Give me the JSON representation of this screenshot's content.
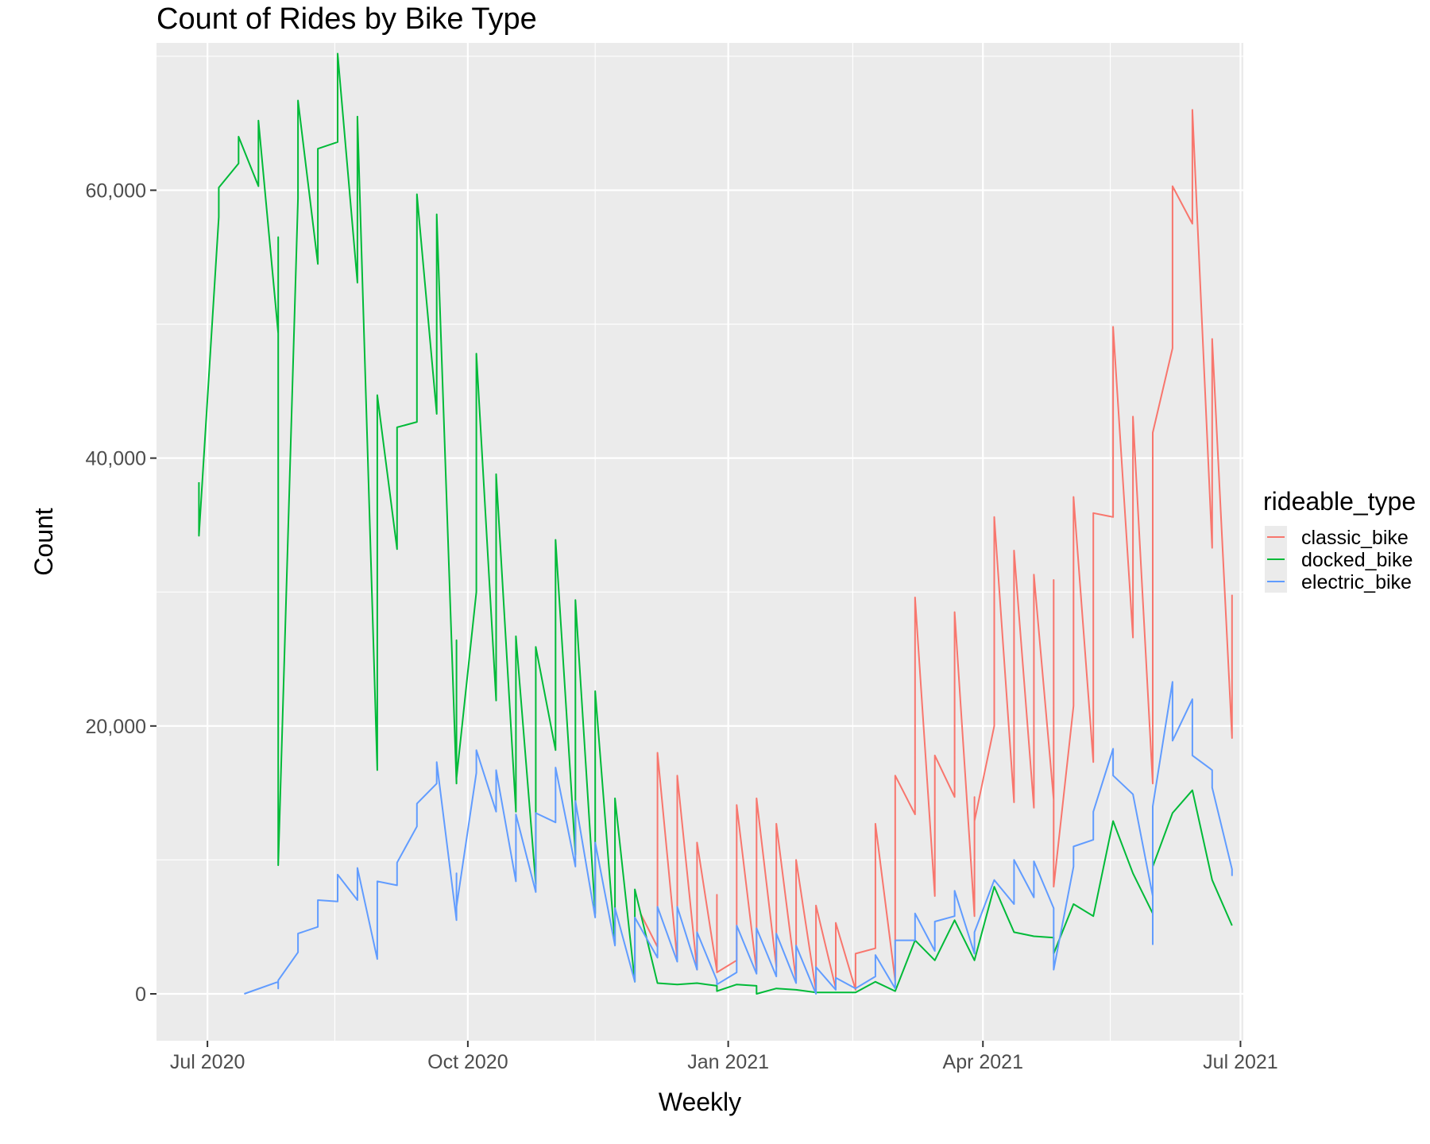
{
  "chart_data": {
    "type": "line",
    "title": "Count of Rides by Bike Type",
    "xlabel": "Weekly",
    "ylabel": "Count",
    "legend_title": "rideable_type",
    "legend_position": "right",
    "grid": true,
    "xlim": [
      "2020-06-13",
      "2021-07-02"
    ],
    "ylim": [
      -3500,
      71000
    ],
    "x_ticks": [
      {
        "date": "2020-07-01",
        "label": "Jul 2020"
      },
      {
        "date": "2020-10-01",
        "label": "Oct 2020"
      },
      {
        "date": "2021-01-01",
        "label": "Jan 2021"
      },
      {
        "date": "2021-04-01",
        "label": "Apr 2021"
      },
      {
        "date": "2021-07-01",
        "label": "Jul 2021"
      }
    ],
    "x_minor_breaks": [
      "2020-08-15",
      "2020-11-15",
      "2021-02-14",
      "2021-05-16"
    ],
    "y_ticks": [
      {
        "value": 0,
        "label": "0"
      },
      {
        "value": 20000,
        "label": "20,000"
      },
      {
        "value": 40000,
        "label": "40,000"
      },
      {
        "value": 60000,
        "label": "60,000"
      }
    ],
    "y_minor_breaks": [
      10000,
      30000,
      50000,
      70000
    ],
    "series": [
      {
        "name": "classic_bike",
        "color": "#F8766D",
        "points": [
          [
            "2020-12-01",
            6000
          ],
          [
            "2020-12-07",
            3500
          ],
          [
            "2020-12-07",
            18000
          ],
          [
            "2020-12-14",
            2500
          ],
          [
            "2020-12-14",
            16300
          ],
          [
            "2020-12-21",
            1800
          ],
          [
            "2020-12-21",
            11300
          ],
          [
            "2020-12-28",
            1700
          ],
          [
            "2020-12-28",
            7400
          ],
          [
            "2020-12-28",
            1600
          ],
          [
            "2021-01-04",
            2500
          ],
          [
            "2021-01-04",
            14100
          ],
          [
            "2021-01-11",
            1700
          ],
          [
            "2021-01-11",
            14600
          ],
          [
            "2021-01-18",
            2000
          ],
          [
            "2021-01-18",
            12700
          ],
          [
            "2021-01-25",
            1000
          ],
          [
            "2021-01-25",
            10000
          ],
          [
            "2021-02-01",
            200
          ],
          [
            "2021-02-01",
            6600
          ],
          [
            "2021-02-08",
            400
          ],
          [
            "2021-02-08",
            5300
          ],
          [
            "2021-02-15",
            300
          ],
          [
            "2021-02-15",
            3000
          ],
          [
            "2021-02-22",
            3400
          ],
          [
            "2021-02-22",
            12700
          ],
          [
            "2021-03-01",
            1000
          ],
          [
            "2021-03-01",
            16300
          ],
          [
            "2021-03-08",
            13400
          ],
          [
            "2021-03-08",
            29600
          ],
          [
            "2021-03-15",
            7300
          ],
          [
            "2021-03-15",
            17800
          ],
          [
            "2021-03-22",
            14700
          ],
          [
            "2021-03-22",
            28500
          ],
          [
            "2021-03-29",
            5800
          ],
          [
            "2021-03-29",
            14700
          ],
          [
            "2021-03-29",
            12900
          ],
          [
            "2021-04-05",
            20000
          ],
          [
            "2021-04-05",
            35600
          ],
          [
            "2021-04-12",
            14300
          ],
          [
            "2021-04-12",
            33100
          ],
          [
            "2021-04-19",
            13900
          ],
          [
            "2021-04-19",
            31300
          ],
          [
            "2021-04-26",
            14500
          ],
          [
            "2021-04-26",
            30900
          ],
          [
            "2021-04-26",
            8000
          ],
          [
            "2021-05-03",
            21500
          ],
          [
            "2021-05-03",
            37100
          ],
          [
            "2021-05-10",
            17300
          ],
          [
            "2021-05-10",
            35900
          ],
          [
            "2021-05-17",
            35600
          ],
          [
            "2021-05-17",
            49800
          ],
          [
            "2021-05-24",
            26600
          ],
          [
            "2021-05-24",
            43100
          ],
          [
            "2021-05-31",
            15700
          ],
          [
            "2021-05-31",
            41900
          ],
          [
            "2021-06-07",
            48200
          ],
          [
            "2021-06-07",
            60300
          ],
          [
            "2021-06-14",
            57500
          ],
          [
            "2021-06-14",
            66000
          ],
          [
            "2021-06-21",
            33300
          ],
          [
            "2021-06-21",
            48900
          ],
          [
            "2021-06-28",
            19100
          ],
          [
            "2021-06-28",
            29800
          ]
        ]
      },
      {
        "name": "docked_bike",
        "color": "#00BA38",
        "points": [
          [
            "2020-06-28",
            38200
          ],
          [
            "2020-06-28",
            34200
          ],
          [
            "2020-07-05",
            58000
          ],
          [
            "2020-07-05",
            60200
          ],
          [
            "2020-07-12",
            62000
          ],
          [
            "2020-07-12",
            64000
          ],
          [
            "2020-07-19",
            60300
          ],
          [
            "2020-07-19",
            65200
          ],
          [
            "2020-07-26",
            49300
          ],
          [
            "2020-07-26",
            56500
          ],
          [
            "2020-07-26",
            9600
          ],
          [
            "2020-08-02",
            59400
          ],
          [
            "2020-08-02",
            66700
          ],
          [
            "2020-08-09",
            54500
          ],
          [
            "2020-08-09",
            63100
          ],
          [
            "2020-08-16",
            63600
          ],
          [
            "2020-08-16",
            70200
          ],
          [
            "2020-08-23",
            53100
          ],
          [
            "2020-08-23",
            65500
          ],
          [
            "2020-08-30",
            16700
          ],
          [
            "2020-08-30",
            44700
          ],
          [
            "2020-09-06",
            33200
          ],
          [
            "2020-09-06",
            42300
          ],
          [
            "2020-09-13",
            42700
          ],
          [
            "2020-09-13",
            59700
          ],
          [
            "2020-09-20",
            43300
          ],
          [
            "2020-09-20",
            58200
          ],
          [
            "2020-09-27",
            15700
          ],
          [
            "2020-09-27",
            26400
          ],
          [
            "2020-09-27",
            16100
          ],
          [
            "2020-10-04",
            30000
          ],
          [
            "2020-10-04",
            47800
          ],
          [
            "2020-10-11",
            21900
          ],
          [
            "2020-10-11",
            38800
          ],
          [
            "2020-10-18",
            13600
          ],
          [
            "2020-10-18",
            26700
          ],
          [
            "2020-10-25",
            8200
          ],
          [
            "2020-10-25",
            25900
          ],
          [
            "2020-11-01",
            18200
          ],
          [
            "2020-11-01",
            33900
          ],
          [
            "2020-11-08",
            10400
          ],
          [
            "2020-11-08",
            29400
          ],
          [
            "2020-11-15",
            6000
          ],
          [
            "2020-11-15",
            22600
          ],
          [
            "2020-11-22",
            3700
          ],
          [
            "2020-11-22",
            14600
          ],
          [
            "2020-11-29",
            900
          ],
          [
            "2020-11-29",
            7800
          ],
          [
            "2020-12-07",
            800
          ],
          [
            "2020-12-14",
            700
          ],
          [
            "2020-12-21",
            800
          ],
          [
            "2020-12-28",
            600
          ],
          [
            "2020-12-28",
            200
          ],
          [
            "2021-01-04",
            700
          ],
          [
            "2021-01-11",
            600
          ],
          [
            "2021-01-11",
            0
          ],
          [
            "2021-01-18",
            400
          ],
          [
            "2021-01-25",
            300
          ],
          [
            "2021-02-01",
            100
          ],
          [
            "2021-02-08",
            100
          ],
          [
            "2021-02-15",
            100
          ],
          [
            "2021-02-22",
            900
          ],
          [
            "2021-03-01",
            200
          ],
          [
            "2021-03-08",
            4000
          ],
          [
            "2021-03-15",
            2500
          ],
          [
            "2021-03-22",
            5500
          ],
          [
            "2021-03-29",
            2500
          ],
          [
            "2021-04-05",
            8000
          ],
          [
            "2021-04-12",
            4600
          ],
          [
            "2021-04-19",
            4300
          ],
          [
            "2021-04-26",
            4200
          ],
          [
            "2021-04-26",
            3000
          ],
          [
            "2021-05-03",
            6700
          ],
          [
            "2021-05-10",
            5800
          ],
          [
            "2021-05-17",
            12900
          ],
          [
            "2021-05-24",
            9000
          ],
          [
            "2021-05-31",
            6000
          ],
          [
            "2021-05-31",
            9500
          ],
          [
            "2021-06-07",
            13500
          ],
          [
            "2021-06-14",
            15200
          ],
          [
            "2021-06-21",
            8500
          ],
          [
            "2021-06-28",
            5100
          ]
        ]
      },
      {
        "name": "electric_bike",
        "color": "#619CFF",
        "points": [
          [
            "2020-07-14",
            0
          ],
          [
            "2020-07-26",
            900
          ],
          [
            "2020-07-26",
            400
          ],
          [
            "2020-07-26",
            1000
          ],
          [
            "2020-08-02",
            3100
          ],
          [
            "2020-08-02",
            4500
          ],
          [
            "2020-08-09",
            5000
          ],
          [
            "2020-08-09",
            7000
          ],
          [
            "2020-08-16",
            6900
          ],
          [
            "2020-08-16",
            8900
          ],
          [
            "2020-08-23",
            7000
          ],
          [
            "2020-08-23",
            9400
          ],
          [
            "2020-08-30",
            2600
          ],
          [
            "2020-08-30",
            8400
          ],
          [
            "2020-09-06",
            8100
          ],
          [
            "2020-09-06",
            9800
          ],
          [
            "2020-09-13",
            12500
          ],
          [
            "2020-09-13",
            14200
          ],
          [
            "2020-09-20",
            15700
          ],
          [
            "2020-09-20",
            17300
          ],
          [
            "2020-09-27",
            5500
          ],
          [
            "2020-09-27",
            9000
          ],
          [
            "2020-09-27",
            6500
          ],
          [
            "2020-10-04",
            16500
          ],
          [
            "2020-10-04",
            18200
          ],
          [
            "2020-10-11",
            13600
          ],
          [
            "2020-10-11",
            16700
          ],
          [
            "2020-10-18",
            8400
          ],
          [
            "2020-10-18",
            13400
          ],
          [
            "2020-10-25",
            7600
          ],
          [
            "2020-10-25",
            13500
          ],
          [
            "2020-11-01",
            12800
          ],
          [
            "2020-11-01",
            16900
          ],
          [
            "2020-11-08",
            9500
          ],
          [
            "2020-11-08",
            14400
          ],
          [
            "2020-11-15",
            5700
          ],
          [
            "2020-11-15",
            11300
          ],
          [
            "2020-11-22",
            3600
          ],
          [
            "2020-11-22",
            6400
          ],
          [
            "2020-11-29",
            900
          ],
          [
            "2020-11-29",
            5700
          ],
          [
            "2020-12-07",
            2700
          ],
          [
            "2020-12-07",
            6500
          ],
          [
            "2020-12-14",
            2400
          ],
          [
            "2020-12-14",
            6500
          ],
          [
            "2020-12-21",
            1800
          ],
          [
            "2020-12-21",
            4600
          ],
          [
            "2020-12-28",
            1000
          ],
          [
            "2020-12-28",
            700
          ],
          [
            "2021-01-04",
            1600
          ],
          [
            "2021-01-04",
            5100
          ],
          [
            "2021-01-11",
            1500
          ],
          [
            "2021-01-11",
            4900
          ],
          [
            "2021-01-18",
            1300
          ],
          [
            "2021-01-18",
            4500
          ],
          [
            "2021-01-25",
            800
          ],
          [
            "2021-01-25",
            3600
          ],
          [
            "2021-02-01",
            0
          ],
          [
            "2021-02-01",
            2000
          ],
          [
            "2021-02-08",
            300
          ],
          [
            "2021-02-08",
            1200
          ],
          [
            "2021-02-15",
            400
          ],
          [
            "2021-02-22",
            1300
          ],
          [
            "2021-02-22",
            2900
          ],
          [
            "2021-03-01",
            400
          ],
          [
            "2021-03-01",
            4000
          ],
          [
            "2021-03-08",
            4000
          ],
          [
            "2021-03-08",
            6000
          ],
          [
            "2021-03-15",
            3200
          ],
          [
            "2021-03-15",
            5400
          ],
          [
            "2021-03-22",
            5800
          ],
          [
            "2021-03-22",
            7700
          ],
          [
            "2021-03-29",
            3000
          ],
          [
            "2021-03-29",
            4600
          ],
          [
            "2021-04-05",
            8500
          ],
          [
            "2021-04-12",
            6700
          ],
          [
            "2021-04-12",
            10000
          ],
          [
            "2021-04-19",
            7200
          ],
          [
            "2021-04-19",
            9900
          ],
          [
            "2021-04-26",
            6400
          ],
          [
            "2021-04-26",
            1800
          ],
          [
            "2021-05-03",
            9500
          ],
          [
            "2021-05-03",
            11000
          ],
          [
            "2021-05-10",
            11500
          ],
          [
            "2021-05-10",
            13600
          ],
          [
            "2021-05-17",
            18300
          ],
          [
            "2021-05-17",
            16300
          ],
          [
            "2021-05-24",
            14900
          ],
          [
            "2021-05-31",
            7300
          ],
          [
            "2021-05-31",
            3700
          ],
          [
            "2021-05-31",
            14000
          ],
          [
            "2021-06-07",
            23300
          ],
          [
            "2021-06-07",
            18900
          ],
          [
            "2021-06-14",
            22000
          ],
          [
            "2021-06-14",
            17800
          ],
          [
            "2021-06-21",
            16700
          ],
          [
            "2021-06-21",
            15400
          ],
          [
            "2021-06-28",
            9300
          ],
          [
            "2021-06-28",
            8800
          ]
        ]
      }
    ]
  }
}
